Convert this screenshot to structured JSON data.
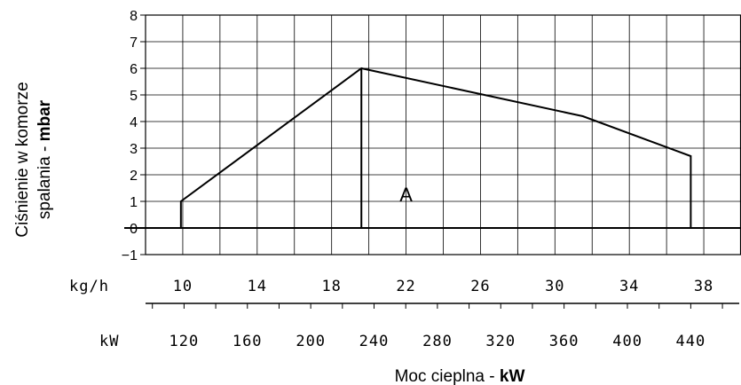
{
  "chart_data": {
    "type": "area",
    "ylabel_line1": "Ciśnienie w komorze",
    "ylabel_line2_normal": "spalania - ",
    "ylabel_line2_bold": "mbar",
    "xtitle_normal": "Moc cieplna - ",
    "xtitle_bold": "kW",
    "ylim": [
      -1,
      8
    ],
    "y_ticks": [
      8,
      7,
      6,
      5,
      4,
      3,
      2,
      1,
      0,
      -1
    ],
    "x_primary_unit": "kg/h",
    "x_primary_range": [
      8,
      40
    ],
    "x_primary_ticks": [
      10,
      14,
      18,
      22,
      26,
      30,
      34,
      38
    ],
    "x_secondary_unit": "kW",
    "x_secondary_ticks": [
      120,
      160,
      200,
      240,
      280,
      320,
      360,
      400,
      440
    ],
    "x_secondary_tick_positions_kgh": [
      10.07,
      13.47,
      16.88,
      20.28,
      23.69,
      27.09,
      30.49,
      33.9,
      37.3
    ],
    "grid": true,
    "area_label": "A",
    "area_label_x": 22.0,
    "area_label_y": 1.0,
    "series": [
      {
        "x": [
          9.9,
          9.9,
          19.6,
          31.5,
          37.3,
          37.3
        ],
        "y": [
          0,
          1,
          6,
          4.2,
          2.7,
          0
        ]
      }
    ],
    "vertical_line_x": 19.6
  }
}
